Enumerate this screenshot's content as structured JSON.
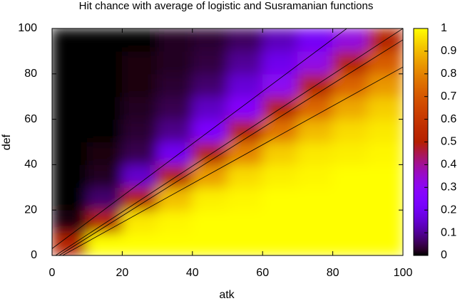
{
  "chart_data": {
    "type": "heatmap",
    "title": "Hit chance with average of logistic and Susramanian functions",
    "x_label": "atk",
    "y_label": "def",
    "x": [
      0,
      10,
      20,
      30,
      40,
      50,
      60,
      70,
      80,
      90,
      100
    ],
    "y": [
      0,
      10,
      20,
      30,
      40,
      50,
      60,
      70,
      80,
      90,
      100
    ],
    "values": [
      [
        0.5,
        1,
        1,
        1,
        1,
        1,
        1,
        1,
        1,
        1
      ],
      [
        0.01,
        0.5,
        0.97,
        0.99,
        1,
        1,
        1,
        1,
        1,
        1
      ],
      [
        0,
        0.07,
        0.5,
        0.91,
        0.98,
        0.99,
        1,
        1,
        1,
        1
      ],
      [
        0,
        0.02,
        0.15,
        0.5,
        0.85,
        0.95,
        0.98,
        0.99,
        1,
        1
      ],
      [
        0,
        0.01,
        0.05,
        0.2,
        0.5,
        0.8,
        0.93,
        0.97,
        0.98,
        0.99
      ],
      [
        0,
        0,
        0.03,
        0.09,
        0.24,
        0.5,
        0.77,
        0.9,
        0.95,
        0.97
      ],
      [
        0,
        0,
        0.02,
        0.05,
        0.14,
        0.27,
        0.5,
        0.74,
        0.87,
        0.93
      ],
      [
        0,
        0,
        0.01,
        0.03,
        0.07,
        0.16,
        0.3,
        0.5,
        0.73,
        0.84
      ],
      [
        0,
        0,
        0.01,
        0.02,
        0.04,
        0.1,
        0.19,
        0.32,
        0.5,
        0.71
      ],
      [
        0,
        0,
        0,
        0.02,
        0.03,
        0.06,
        0.13,
        0.21,
        0.33,
        0.5
      ]
    ],
    "contours": [
      {
        "x": [
          0,
          84
        ],
        "y": [
          3,
          100
        ]
      },
      {
        "x": [
          1,
          100
        ],
        "y": [
          0,
          100
        ]
      },
      {
        "x": [
          2,
          100
        ],
        "y": [
          0,
          95
        ]
      },
      {
        "x": [
          3,
          100
        ],
        "y": [
          0,
          83
        ]
      }
    ],
    "palette": "gnuplot",
    "xlim": [
      0,
      100
    ],
    "xticks": [
      0,
      20,
      40,
      60,
      80,
      100
    ],
    "ylim": [
      0,
      100
    ],
    "yticks": [
      0,
      20,
      40,
      60,
      80,
      100
    ],
    "clim": [
      0,
      1
    ],
    "cticks": [
      0,
      0.1,
      0.2,
      0.3,
      0.4,
      0.5,
      0.6,
      0.7,
      0.8,
      0.9,
      1
    ]
  }
}
